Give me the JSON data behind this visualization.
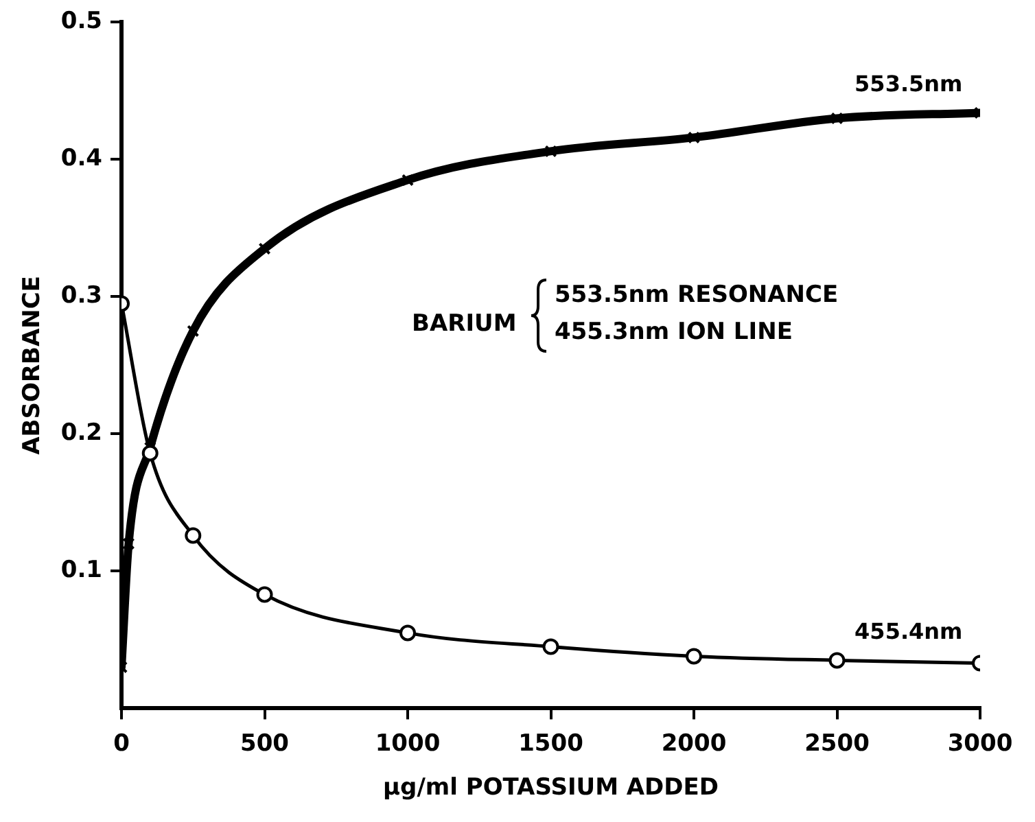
{
  "chart_data": {
    "type": "line",
    "xlabel": "µg/ml POTASSIUM ADDED",
    "ylabel": "ABSORBANCE",
    "xlim": [
      0,
      3000
    ],
    "xticks": [
      0,
      500,
      1000,
      1500,
      2000,
      2500,
      3000
    ],
    "ylim": [
      0,
      0.5
    ],
    "yticks": [
      0.1,
      0.2,
      0.3,
      0.4,
      0.5
    ],
    "grid": false,
    "legend": false,
    "series": [
      {
        "color": "#000000",
        "marker": "cross",
        "x": [
          0,
          25,
          100,
          250,
          500,
          1000,
          1500,
          2000,
          2500,
          3000
        ],
        "values": [
          0.03,
          0.12,
          0.19,
          0.275,
          0.335,
          0.385,
          0.406,
          0.416,
          0.43,
          0.434
        ]
      },
      {
        "color": "#000000",
        "marker": "circle",
        "x": [
          0,
          100,
          250,
          500,
          1000,
          1500,
          2000,
          2500,
          3000
        ],
        "values": [
          0.295,
          0.186,
          0.126,
          0.083,
          0.055,
          0.045,
          0.038,
          0.035,
          0.033
        ]
      }
    ],
    "annotations": [
      {
        "text": "553.5nm",
        "x": 2750,
        "y": 0.434
      },
      {
        "text": "455.4nm",
        "x": 2750,
        "y": 0.035
      },
      "BARIUM",
      "553.5nm RESONANCE",
      "455.3nm ION LINE"
    ]
  }
}
